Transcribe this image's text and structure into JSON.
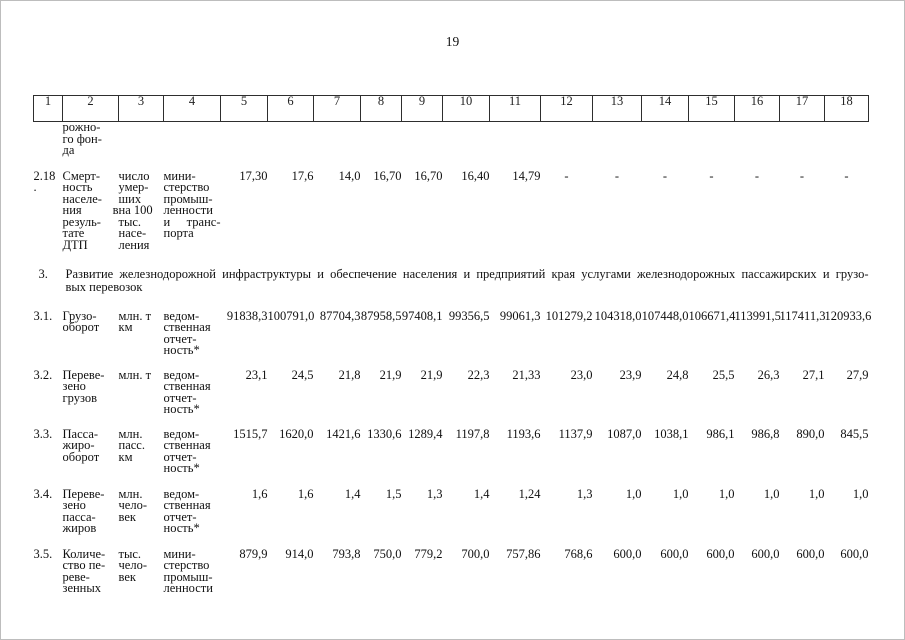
{
  "page_number": "19",
  "table": {
    "header_columns": [
      "1",
      "2",
      "3",
      "4",
      "5",
      "6",
      "7",
      "8",
      "9",
      "10",
      "11",
      "12",
      "13",
      "14",
      "15",
      "16",
      "17",
      "18"
    ],
    "continuation_lines": [
      "рожно-",
      "го фон-",
      "да"
    ],
    "section_heading": {
      "number": "3.",
      "text_lines": [
        "Развитие железнодорожной инфраструктуры и обеспечение населения и предприятий края услугами железнодорожных пассажирских и грузо-",
        "вых перевозок"
      ]
    },
    "rows": [
      {
        "id_lines": [
          "2.18",
          "."
        ],
        "indicator_lines": [
          "Смерт-",
          "ность",
          "населе-",
          "ния в",
          "резуль-",
          "тате",
          "ДТП"
        ],
        "unit_lines": [
          "число",
          "умер-",
          "ших",
          "на 100",
          "тыс.",
          "насе-",
          "ления"
        ],
        "source_lines": [
          "мини-",
          "стерство",
          "промыш-",
          "ленности",
          "и транс-",
          "порта"
        ],
        "values": [
          "17,30",
          "17,6",
          "14,0",
          "16,70",
          "16,70",
          "16,40",
          "14,79",
          "-",
          "-",
          "-",
          "-",
          "-",
          "-",
          "-"
        ]
      },
      {
        "id_lines": [
          "3.1."
        ],
        "indicator_lines": [
          "Грузо-",
          "оборот"
        ],
        "unit_lines": [
          "млн. т",
          "км"
        ],
        "source_lines": [
          "ведом-",
          "ственная",
          "отчет-",
          "ность*"
        ],
        "values": [
          "91838,3",
          "100791,0",
          "87704,3",
          "87958,5",
          "97408,1",
          "99356,5",
          "99061,3",
          "101279,2",
          "104318,0",
          "107448,0",
          "106671,4",
          "113991,5",
          "117411,3",
          "120933,6"
        ]
      },
      {
        "id_lines": [
          "3.2."
        ],
        "indicator_lines": [
          "Переве-",
          "зено",
          "грузов"
        ],
        "unit_lines": [
          "млн. т"
        ],
        "source_lines": [
          "ведом-",
          "ственная",
          "отчет-",
          "ность*"
        ],
        "values": [
          "23,1",
          "24,5",
          "21,8",
          "21,9",
          "21,9",
          "22,3",
          "21,33",
          "23,0",
          "23,9",
          "24,8",
          "25,5",
          "26,3",
          "27,1",
          "27,9"
        ]
      },
      {
        "id_lines": [
          "3.3."
        ],
        "indicator_lines": [
          "Пасса-",
          "жиро-",
          "оборот"
        ],
        "unit_lines": [
          "млн.",
          "пасс.",
          "км"
        ],
        "source_lines": [
          "ведом-",
          "ственная",
          "отчет-",
          "ность*"
        ],
        "values": [
          "1515,7",
          "1620,0",
          "1421,6",
          "1330,6",
          "1289,4",
          "1197,8",
          "1193,6",
          "1137,9",
          "1087,0",
          "1038,1",
          "986,1",
          "986,8",
          "890,0",
          "845,5"
        ]
      },
      {
        "id_lines": [
          "3.4."
        ],
        "indicator_lines": [
          "Переве-",
          "зено",
          "пасса-",
          "жиров"
        ],
        "unit_lines": [
          "млн.",
          "чело-",
          "век"
        ],
        "source_lines": [
          "ведом-",
          "ственная",
          "отчет-",
          "ность*"
        ],
        "values": [
          "1,6",
          "1,6",
          "1,4",
          "1,5",
          "1,3",
          "1,4",
          "1,24",
          "1,3",
          "1,0",
          "1,0",
          "1,0",
          "1,0",
          "1,0",
          "1,0"
        ]
      },
      {
        "id_lines": [
          "3.5."
        ],
        "indicator_lines": [
          "Количе-",
          "ство пе-",
          "реве-",
          "зенных"
        ],
        "unit_lines": [
          "тыс.",
          "чело-",
          "век"
        ],
        "source_lines": [
          "мини-",
          "стерство",
          "промыш-",
          "ленности"
        ],
        "values": [
          "879,9",
          "914,0",
          "793,8",
          "750,0",
          "779,2",
          "700,0",
          "757,86",
          "768,6",
          "600,0",
          "600,0",
          "600,0",
          "600,0",
          "600,0",
          "600,0"
        ]
      }
    ]
  }
}
